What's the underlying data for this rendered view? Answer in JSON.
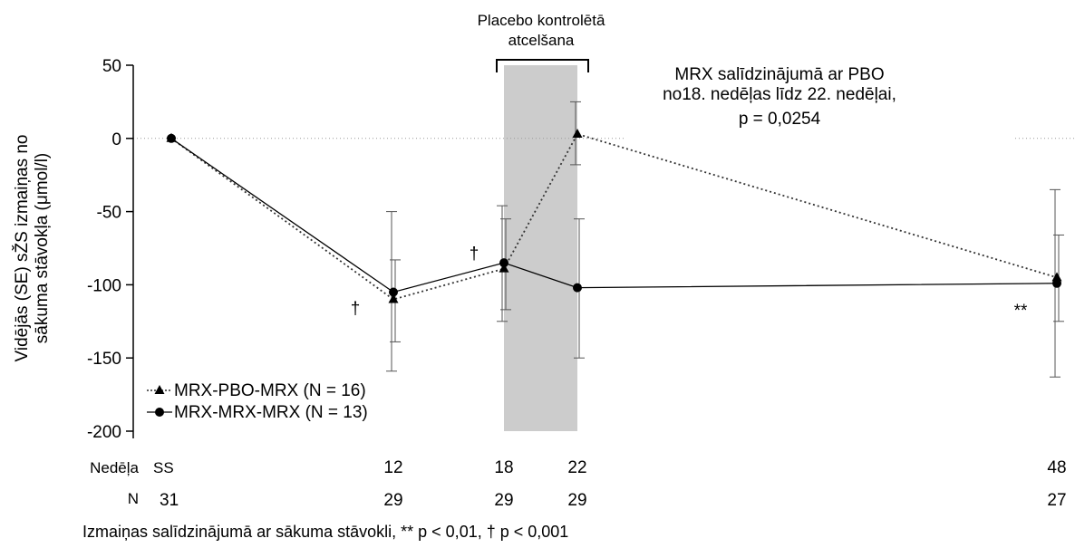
{
  "chart_data": {
    "type": "line",
    "ylabel_line1": "Vidējās (SE) sŽS izmaiņas no",
    "ylabel_line2": "sākuma stāvokļa (μmol/l)",
    "ylim": [
      -200,
      50
    ],
    "yticks": [
      50,
      0,
      -50,
      -100,
      -150,
      -200
    ],
    "x_positions": [
      0,
      12,
      18,
      22,
      48
    ],
    "week_row_label": "Nedēļa",
    "week_labels": [
      "SS",
      "12",
      "18",
      "22",
      "48"
    ],
    "n_row_label": "N",
    "n_values": [
      "31",
      "29",
      "29",
      "29",
      "27"
    ],
    "shaded_region": {
      "from": 18,
      "to": 22,
      "label_line1": "Placebo kontrolētā",
      "label_line2": "atcelšana"
    },
    "annotation_lines": [
      "MRX salīdzinājumā ar PBO",
      "no18. nedēļas līdz 22. nedēļai,",
      "p = 0,0254"
    ],
    "series": [
      {
        "name": "MRX-PBO-MRX (N = 16)",
        "marker": "triangle",
        "line_style": "dotted",
        "x": [
          0,
          12,
          18,
          22,
          48
        ],
        "y": [
          0,
          -110,
          -89,
          3,
          -95
        ],
        "err_low": [
          null,
          -159,
          -125,
          -18,
          -163
        ],
        "err_high": [
          null,
          -50,
          -46,
          25,
          -35
        ]
      },
      {
        "name": "MRX-MRX-MRX (N = 13)",
        "marker": "circle",
        "line_style": "solid",
        "x": [
          0,
          12,
          18,
          22,
          48
        ],
        "y": [
          0,
          -105,
          -85,
          -102,
          -99
        ],
        "err_low": [
          null,
          -139,
          -117,
          -150,
          -125
        ],
        "err_high": [
          null,
          -83,
          -55,
          -55,
          -66
        ]
      }
    ],
    "point_markers": [
      {
        "text": "†",
        "x": 12
      },
      {
        "text": "†",
        "x": 18
      },
      {
        "text": "**",
        "x": 48
      }
    ],
    "footnote": "Izmaiņas salīdzinājumā ar sākuma stāvokli, ** p < 0,01, † p < 0,001"
  }
}
